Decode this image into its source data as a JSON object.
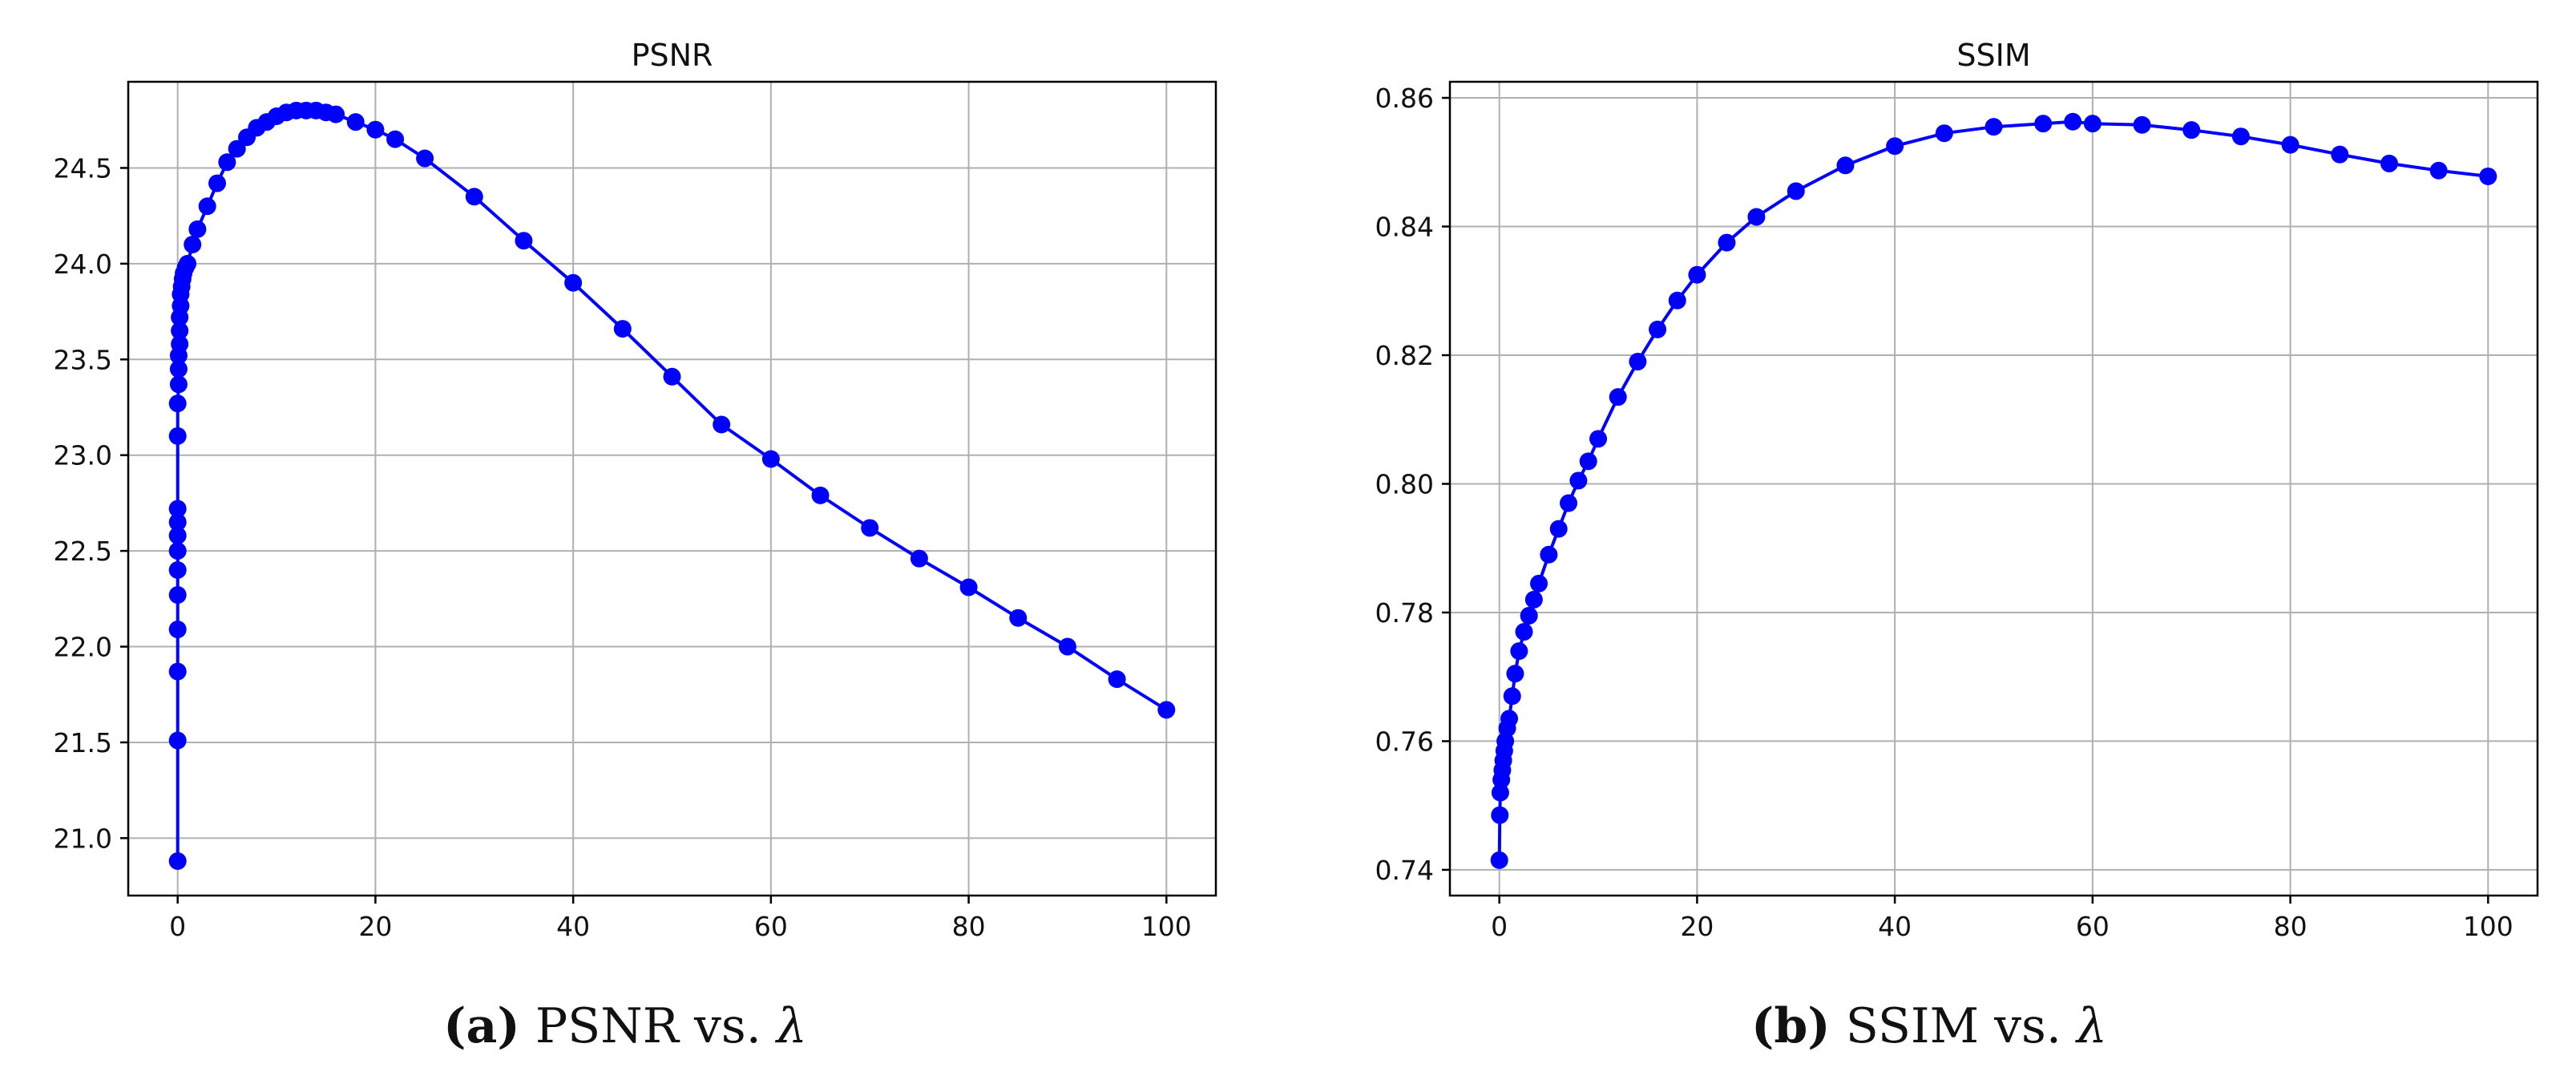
{
  "chart_data": [
    {
      "type": "line",
      "title": "PSNR",
      "xlabel": "",
      "ylabel": "",
      "xlim": [
        -5,
        105
      ],
      "ylim": [
        20.7,
        24.95
      ],
      "xticks": [
        0,
        20,
        40,
        60,
        80,
        100
      ],
      "yticks": [
        21.0,
        21.5,
        22.0,
        22.5,
        23.0,
        23.5,
        24.0,
        24.5
      ],
      "grid": true,
      "marker": "circle",
      "color": "#0000ff",
      "series": [
        {
          "x": [
            0,
            0,
            0,
            0,
            0,
            0,
            0,
            0,
            0,
            0,
            0,
            0,
            0.1,
            0.1,
            0.1,
            0.2,
            0.2,
            0.2,
            0.3,
            0.3,
            0.4,
            0.5,
            0.6,
            0.8,
            1,
            1.5,
            2,
            3,
            4,
            5,
            6,
            7,
            8,
            9,
            10,
            11,
            12,
            13,
            14,
            15,
            16,
            18,
            20,
            22,
            25,
            30,
            35,
            40,
            45,
            50,
            55,
            60,
            65,
            70,
            75,
            80,
            85,
            90,
            95,
            100
          ],
          "y": [
            20.88,
            21.51,
            21.87,
            22.09,
            22.27,
            22.4,
            22.5,
            22.58,
            22.65,
            22.72,
            23.1,
            23.27,
            23.37,
            23.45,
            23.52,
            23.58,
            23.65,
            23.72,
            23.78,
            23.84,
            23.88,
            23.92,
            23.95,
            23.98,
            24.0,
            24.1,
            24.18,
            24.3,
            24.42,
            24.53,
            24.6,
            24.66,
            24.71,
            24.74,
            24.77,
            24.79,
            24.8,
            24.8,
            24.8,
            24.79,
            24.78,
            24.74,
            24.7,
            24.65,
            24.55,
            24.35,
            24.12,
            23.9,
            23.66,
            23.41,
            23.16,
            22.98,
            22.79,
            22.62,
            22.46,
            22.31,
            22.15,
            22.0,
            21.83,
            21.67
          ]
        }
      ]
    },
    {
      "type": "line",
      "title": "SSIM",
      "xlabel": "",
      "ylabel": "",
      "xlim": [
        -5,
        105
      ],
      "ylim": [
        0.736,
        0.8625
      ],
      "xticks": [
        0,
        20,
        40,
        60,
        80,
        100
      ],
      "yticks": [
        0.74,
        0.76,
        0.78,
        0.8,
        0.82,
        0.84,
        0.86
      ],
      "grid": true,
      "marker": "circle",
      "color": "#0000ff",
      "series": [
        {
          "x": [
            0,
            0.05,
            0.1,
            0.2,
            0.3,
            0.4,
            0.5,
            0.6,
            0.8,
            1,
            1.3,
            1.6,
            2,
            2.5,
            3,
            3.5,
            4,
            5,
            6,
            7,
            8,
            9,
            10,
            12,
            14,
            16,
            18,
            20,
            23,
            26,
            30,
            35,
            40,
            45,
            50,
            55,
            58,
            60,
            65,
            70,
            75,
            80,
            85,
            90,
            95,
            100
          ],
          "y": [
            0.7415,
            0.7485,
            0.752,
            0.754,
            0.7555,
            0.757,
            0.7585,
            0.76,
            0.762,
            0.7635,
            0.767,
            0.7705,
            0.774,
            0.777,
            0.7795,
            0.782,
            0.7845,
            0.789,
            0.793,
            0.797,
            0.8005,
            0.8035,
            0.807,
            0.8135,
            0.819,
            0.824,
            0.8285,
            0.8325,
            0.8375,
            0.8415,
            0.8455,
            0.8495,
            0.8525,
            0.8545,
            0.8555,
            0.856,
            0.8563,
            0.856,
            0.8558,
            0.855,
            0.854,
            0.8527,
            0.8512,
            0.8498,
            0.8487,
            0.8478
          ]
        }
      ]
    }
  ],
  "captions": [
    {
      "label": "(a)",
      "text": "PSNR vs.",
      "symbol": "λ"
    },
    {
      "label": "(b)",
      "text": "SSIM vs.",
      "symbol": "λ"
    }
  ]
}
